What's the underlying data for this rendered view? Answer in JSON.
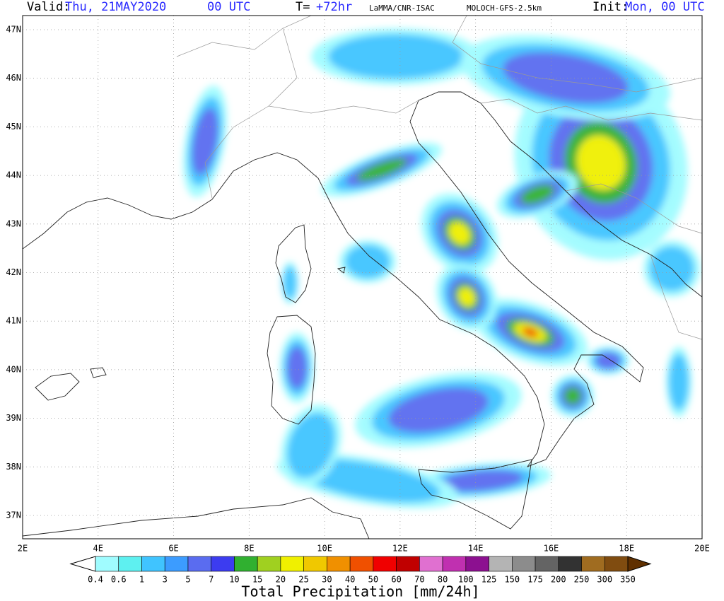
{
  "header": {
    "valid_label": "Valid:",
    "valid_date": "Thu, 21MAY2020",
    "valid_time": "00 UTC",
    "lead_label": "T=",
    "lead_time": "+72hr",
    "source": "LaMMA/CNR-ISAC",
    "model": "MOLOCH-GFS-2.5km",
    "init_label": "Init:",
    "init_time": "Mon, 00 UTC"
  },
  "map": {
    "lon_labels": [
      "2E",
      "4E",
      "6E",
      "8E",
      "10E",
      "12E",
      "14E",
      "16E",
      "18E",
      "20E"
    ],
    "lat_labels": [
      "47N",
      "46N",
      "45N",
      "44N",
      "43N",
      "42N",
      "41N",
      "40N",
      "39N",
      "38N",
      "37N"
    ]
  },
  "colorbar": {
    "labels": [
      "0.4",
      "0.6",
      "1",
      "3",
      "5",
      "7",
      "10",
      "15",
      "20",
      "25",
      "30",
      "40",
      "50",
      "60",
      "70",
      "80",
      "100",
      "125",
      "150",
      "175",
      "200",
      "250",
      "300",
      "350"
    ],
    "colors": [
      "#ffffff",
      "#a0fcff",
      "#5ef0f0",
      "#40c4ff",
      "#3c9cff",
      "#5a6cf0",
      "#3c3cf0",
      "#30b030",
      "#a0d020",
      "#f0f000",
      "#f0c800",
      "#f09000",
      "#f05000",
      "#f00000",
      "#c00000",
      "#e070d0",
      "#c030b0",
      "#8c1090",
      "#b4b4b4",
      "#8c8c8c",
      "#646464",
      "#323232",
      "#a06c20",
      "#804c10",
      "#603000"
    ],
    "title": "Total Precipitation [mm/24h]"
  }
}
